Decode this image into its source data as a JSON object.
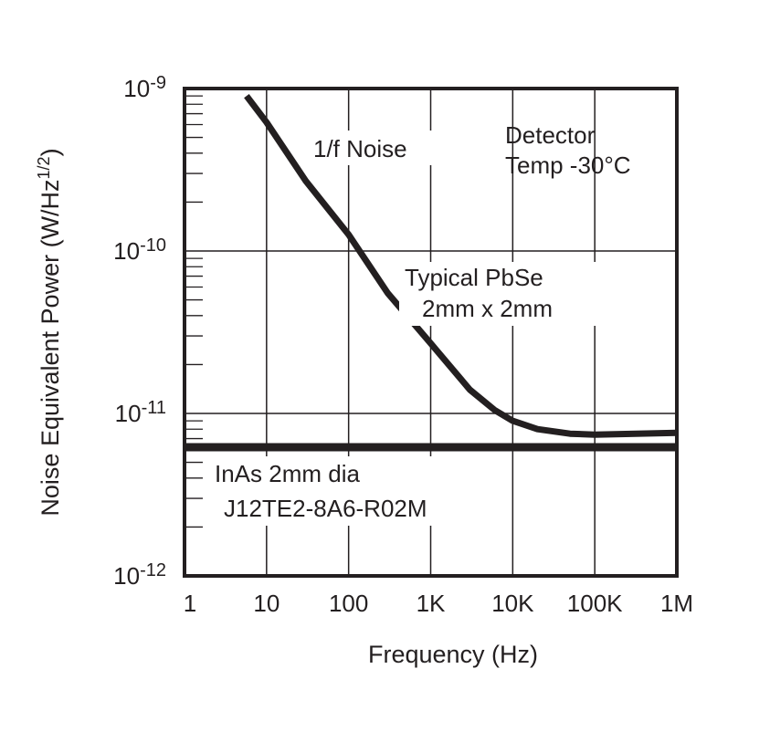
{
  "chart_data": {
    "type": "line",
    "title": "",
    "xlabel": "Frequency (Hz)",
    "ylabel": "Noise Equivalent Power (W/Hz",
    "ylabel_sup": "1/2",
    "ylabel_end": ")",
    "xscale": "log",
    "yscale": "log",
    "xlim": [
      1,
      1000000
    ],
    "ylim": [
      1e-12,
      1e-09
    ],
    "grid": true,
    "x_ticks": [
      {
        "value": 1,
        "label": "1"
      },
      {
        "value": 10,
        "label": "10"
      },
      {
        "value": 100,
        "label": "100"
      },
      {
        "value": 1000,
        "label": "1K"
      },
      {
        "value": 10000,
        "label": "10K"
      },
      {
        "value": 100000,
        "label": "100K"
      },
      {
        "value": 1000000,
        "label": "1M"
      }
    ],
    "y_ticks": [
      {
        "value": 1e-09,
        "base": "10",
        "exp": "-9"
      },
      {
        "value": 1e-10,
        "base": "10",
        "exp": "-10"
      },
      {
        "value": 1e-11,
        "base": "10",
        "exp": "-11"
      },
      {
        "value": 1e-12,
        "base": "10",
        "exp": "-12"
      }
    ],
    "series": [
      {
        "name": "Typical PbSe 2mm x 2mm",
        "x": [
          5.7,
          10,
          30,
          100,
          300,
          1000,
          3000,
          6000,
          10000,
          20000,
          50000,
          100000,
          1000000
        ],
        "y": [
          9e-10,
          6.2e-10,
          2.7e-10,
          1.26e-10,
          5.5e-11,
          2.7e-11,
          1.4e-11,
          1.05e-11,
          9e-12,
          8e-12,
          7.5e-12,
          7.4e-12,
          7.6e-12
        ]
      },
      {
        "name": "InAs 2mm dia J12TE2-8A6-R02M",
        "x": [
          1,
          1000000
        ],
        "y": [
          6.2e-12,
          6.2e-12
        ]
      }
    ],
    "annotations": {
      "one_over_f": "1/f Noise",
      "detector_line1": "Detector",
      "detector_line2": "Temp -30°C",
      "pbse_line1": "Typical PbSe",
      "pbse_line2": "2mm x 2mm",
      "inas_line1": "InAs 2mm dia",
      "inas_line2": "J12TE2-8A6-R02M"
    },
    "colors": {
      "line": "#231f20",
      "grid": "#231f20"
    }
  }
}
